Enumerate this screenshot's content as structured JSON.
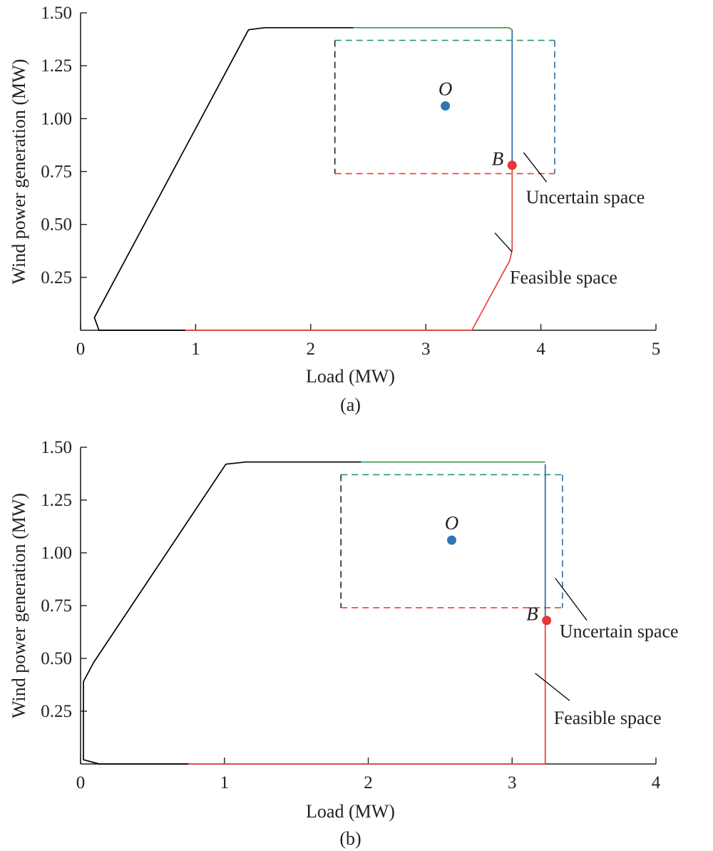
{
  "chart_data": [
    {
      "type": "line",
      "caption": "(a)",
      "xlabel": "Load (MW)",
      "ylabel": "Wind power generation (MW)",
      "xlim": [
        0,
        5
      ],
      "ylim": [
        0,
        1.5
      ],
      "xticks": [
        0,
        1,
        2,
        3,
        4,
        5
      ],
      "xtick_labels": [
        "0",
        "1",
        "2",
        "3",
        "4",
        "5"
      ],
      "yticks": [
        0.25,
        0.5,
        0.75,
        1.0,
        1.25,
        1.5
      ],
      "ytick_labels": [
        "0.25",
        "0.50",
        "0.75",
        "1.00",
        "1.25",
        "1.50"
      ],
      "grid": false,
      "series": [
        {
          "color": "#000000",
          "style": "solid",
          "x": [
            0.91,
            0.16,
            0.12,
            1.46,
            1.6,
            2.37
          ],
          "y": [
            0.0,
            0.0,
            0.06,
            1.42,
            1.43,
            1.43
          ]
        },
        {
          "color": "#e8403a",
          "style": "solid",
          "x": [
            0.91,
            3.4,
            3.73,
            3.75,
            3.75
          ],
          "y": [
            0.0,
            0.0,
            0.33,
            0.38,
            0.78
          ]
        },
        {
          "color": "#2b6aa3",
          "style": "solid",
          "x": [
            3.75,
            3.75
          ],
          "y": [
            0.78,
            1.42
          ]
        },
        {
          "color": "#3a9a4a",
          "style": "solid",
          "x": [
            2.37,
            3.72,
            3.75,
            3.75
          ],
          "y": [
            1.43,
            1.43,
            1.42,
            1.42
          ]
        }
      ],
      "uncertainty_box": {
        "x_min": 2.21,
        "x_max": 4.12,
        "y_min": 0.74,
        "y_max": 1.37
      },
      "points": [
        {
          "label": "O",
          "x": 3.17,
          "y": 1.06,
          "color": "#2f74b5"
        },
        {
          "label": "B",
          "x": 3.75,
          "y": 0.78,
          "color": "#e8363a"
        }
      ],
      "annotations": [
        {
          "text": "Uncertain space",
          "x1": 3.85,
          "y1": 0.84,
          "x2": 4.05,
          "y2": 0.7,
          "tx": 3.87,
          "ty": 0.6
        },
        {
          "text": "Feasible space",
          "x1": 3.6,
          "y1": 0.46,
          "x2": 3.75,
          "y2": 0.37,
          "tx": 3.73,
          "ty": 0.22
        }
      ]
    },
    {
      "type": "line",
      "caption": "(b)",
      "xlabel": "Load (MW)",
      "ylabel": "Wind power generation (MW)",
      "xlim": [
        0,
        4
      ],
      "ylim": [
        0,
        1.5
      ],
      "xticks": [
        0,
        1,
        2,
        3,
        4
      ],
      "xtick_labels": [
        "0",
        "1",
        "2",
        "3",
        "4"
      ],
      "yticks": [
        0.25,
        0.5,
        0.75,
        1.0,
        1.25,
        1.5
      ],
      "ytick_labels": [
        "0.25",
        "0.50",
        "0.75",
        "1.00",
        "1.25",
        "1.50"
      ],
      "grid": false,
      "series": [
        {
          "color": "#000000",
          "style": "solid",
          "x": [
            0.75,
            0.13,
            0.02,
            0.02,
            0.09,
            1.01,
            1.15,
            1.95
          ],
          "y": [
            0.0,
            0.0,
            0.02,
            0.39,
            0.48,
            1.42,
            1.43,
            1.43
          ]
        },
        {
          "color": "#e8403a",
          "style": "solid",
          "x": [
            0.75,
            3.23,
            3.23
          ],
          "y": [
            0.0,
            0.0,
            0.68
          ]
        },
        {
          "color": "#2b6aa3",
          "style": "solid",
          "x": [
            3.23,
            3.23
          ],
          "y": [
            0.68,
            1.42
          ]
        },
        {
          "color": "#3a9a4a",
          "style": "solid",
          "x": [
            1.95,
            3.23
          ],
          "y": [
            1.43,
            1.43
          ]
        }
      ],
      "uncertainty_box": {
        "x_min": 1.81,
        "x_max": 3.35,
        "y_min": 0.74,
        "y_max": 1.37
      },
      "points": [
        {
          "label": "O",
          "x": 2.58,
          "y": 1.06,
          "color": "#2f74b5"
        },
        {
          "label": "B",
          "x": 3.24,
          "y": 0.68,
          "color": "#e8363a"
        }
      ],
      "annotations": [
        {
          "text": "Uncertain space",
          "x1": 3.3,
          "y1": 0.88,
          "x2": 3.52,
          "y2": 0.68,
          "tx": 3.33,
          "ty": 0.6
        },
        {
          "text": "Feasible space",
          "x1": 3.16,
          "y1": 0.43,
          "x2": 3.4,
          "y2": 0.3,
          "tx": 3.29,
          "ty": 0.19
        }
      ]
    }
  ],
  "colors": {
    "axis": "#231f20",
    "box_green": "#2a9a5a",
    "box_blue": "#2b6aa3",
    "box_red": "#e8403a",
    "box_black": "#222222"
  }
}
